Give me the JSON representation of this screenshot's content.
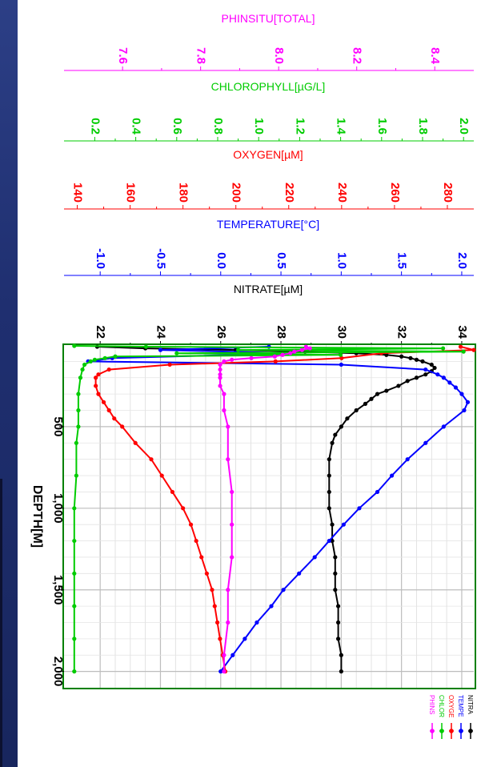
{
  "chart_data": {
    "type": "line",
    "orientation": "rotated-90-clockwise",
    "depth_axis": {
      "label": "DEPTH[M]",
      "range": [
        0,
        2100
      ],
      "ticks": [
        500,
        1000,
        1500,
        2000
      ],
      "tick_labels": [
        "500",
        "1,000",
        "1,500",
        "2,000"
      ]
    },
    "axes": [
      {
        "key": "phinsitu",
        "label": "PHINSITU[TOTAL]",
        "color": "#ff00ff",
        "range": [
          7.45,
          8.5
        ],
        "ticks": [
          7.6,
          7.8,
          8.0,
          8.2,
          8.4
        ],
        "tick_labels": [
          "7.6",
          "7.8",
          "8.0",
          "8.2",
          "8.4"
        ]
      },
      {
        "key": "chlorophyll",
        "label": "CHLOROPHYLL[µG/L]",
        "color": "#00cc00",
        "range": [
          0.05,
          2.05
        ],
        "ticks": [
          0.2,
          0.4,
          0.6,
          0.8,
          1.0,
          1.2,
          1.4,
          1.6,
          1.8,
          2.0
        ],
        "tick_labels": [
          "0.2",
          "0.4",
          "0.6",
          "0.8",
          "1.0",
          "1.2",
          "1.4",
          "1.6",
          "1.8",
          "2.0"
        ]
      },
      {
        "key": "oxygen",
        "label": "OXYGEN[µM]",
        "color": "#ff0000",
        "range": [
          135,
          290
        ],
        "ticks": [
          140,
          160,
          180,
          200,
          220,
          240,
          260,
          280
        ],
        "tick_labels": [
          "140",
          "160",
          "180",
          "200",
          "220",
          "240",
          "260",
          "280"
        ]
      },
      {
        "key": "temperature",
        "label": "TEMPERATURE[°C]",
        "color": "#0000ff",
        "range": [
          -1.3,
          2.1
        ],
        "ticks": [
          -1.0,
          -0.5,
          0.0,
          0.5,
          1.0,
          1.5,
          2.0
        ],
        "tick_labels": [
          "-1.0",
          "-0.5",
          "0.0",
          "0.5",
          "1.0",
          "1.5",
          "2.0"
        ]
      },
      {
        "key": "nitrate",
        "label": "NITRATE[µM]",
        "color": "#000000",
        "range": [
          20.8,
          34.4
        ],
        "ticks": [
          22,
          24,
          26,
          28,
          30,
          32,
          34
        ],
        "tick_labels": [
          "22",
          "24",
          "26",
          "28",
          "30",
          "32",
          "34"
        ]
      }
    ],
    "grid": true,
    "legend_position": "bottom-right",
    "legend": [
      {
        "key": "nitrate",
        "label": "NITRA",
        "color": "#000000"
      },
      {
        "key": "temperature",
        "label": "TEMPE",
        "color": "#0000ff"
      },
      {
        "key": "oxygen",
        "label": "OXYGE",
        "color": "#ff0000"
      },
      {
        "key": "chlorophyll",
        "label": "CHLOR",
        "color": "#00cc00"
      },
      {
        "key": "phinsitu",
        "label": "PHINS",
        "color": "#ff00ff"
      }
    ],
    "series": [
      {
        "key": "nitrate",
        "color": "#000000",
        "depth": [
          10,
          20,
          30,
          40,
          50,
          60,
          70,
          80,
          90,
          100,
          120,
          140,
          160,
          180,
          200,
          220,
          250,
          280,
          300,
          330,
          360,
          400,
          450,
          500,
          550,
          600,
          700,
          800,
          900,
          1000,
          1100,
          1200,
          1300,
          1400,
          1500,
          1600,
          1700,
          1800,
          1900,
          2000
        ],
        "values": [
          21.9,
          23.5,
          26.5,
          28.8,
          30.5,
          31.5,
          32.0,
          32.3,
          32.5,
          32.7,
          33.0,
          33.1,
          33.0,
          32.8,
          32.5,
          32.2,
          31.9,
          31.5,
          31.2,
          31.0,
          30.8,
          30.5,
          30.2,
          30.0,
          29.8,
          29.7,
          29.6,
          29.6,
          29.6,
          29.6,
          29.7,
          29.7,
          29.8,
          29.8,
          29.8,
          29.9,
          29.9,
          29.9,
          30.0,
          30.0
        ]
      },
      {
        "key": "temperature",
        "color": "#0000ff",
        "depth": [
          10,
          30,
          50,
          80,
          100,
          120,
          150,
          180,
          200,
          230,
          260,
          300,
          350,
          400,
          500,
          600,
          700,
          800,
          900,
          1000,
          1100,
          1200,
          1300,
          1400,
          1500,
          1600,
          1700,
          1800,
          1900,
          2000
        ],
        "values": [
          0.4,
          -0.5,
          0.6,
          -0.9,
          -1.1,
          1.0,
          1.7,
          1.8,
          1.85,
          1.9,
          1.95,
          2.0,
          2.05,
          2.02,
          1.85,
          1.7,
          1.55,
          1.42,
          1.3,
          1.15,
          1.02,
          0.9,
          0.78,
          0.65,
          0.52,
          0.42,
          0.3,
          0.2,
          0.1,
          0.0
        ]
      },
      {
        "key": "oxygen",
        "color": "#ff0000",
        "depth": [
          10,
          30,
          50,
          80,
          100,
          120,
          150,
          180,
          200,
          250,
          300,
          350,
          400,
          450,
          500,
          600,
          700,
          800,
          900,
          1000,
          1100,
          1200,
          1300,
          1400,
          1500,
          1600,
          1700,
          1800,
          1900,
          2000
        ],
        "values": [
          285,
          290,
          255,
          240,
          215,
          175,
          152,
          148,
          147,
          147,
          148,
          150,
          152,
          154,
          157,
          162,
          168,
          172,
          176,
          180,
          183,
          185,
          187,
          189,
          191,
          192,
          193,
          194,
          195,
          196
        ]
      },
      {
        "key": "chlorophyll",
        "color": "#00cc00",
        "depth": [
          5,
          10,
          20,
          30,
          40,
          50,
          60,
          70,
          80,
          90,
          100,
          120,
          150,
          200,
          300,
          400,
          500,
          600,
          800,
          1000,
          1200,
          1400,
          1600,
          1800,
          2000
        ],
        "values": [
          0.1,
          0.45,
          1.9,
          0.9,
          2.0,
          0.6,
          1.4,
          0.3,
          0.25,
          0.2,
          0.18,
          0.15,
          0.14,
          0.13,
          0.12,
          0.12,
          0.12,
          0.11,
          0.11,
          0.1,
          0.1,
          0.1,
          0.1,
          0.1,
          0.1
        ]
      },
      {
        "key": "phinsitu",
        "color": "#ff00ff",
        "depth": [
          10,
          20,
          30,
          40,
          50,
          60,
          70,
          80,
          90,
          100,
          120,
          150,
          180,
          200,
          250,
          300,
          400,
          500,
          700,
          900,
          1100,
          1300,
          1500,
          1700,
          1900,
          2000
        ],
        "values": [
          8.07,
          8.08,
          8.06,
          8.04,
          8.03,
          8.01,
          7.99,
          7.93,
          7.88,
          7.86,
          7.85,
          7.85,
          7.85,
          7.85,
          7.85,
          7.86,
          7.86,
          7.87,
          7.87,
          7.88,
          7.88,
          7.88,
          7.87,
          7.87,
          7.86,
          7.86
        ]
      }
    ]
  }
}
